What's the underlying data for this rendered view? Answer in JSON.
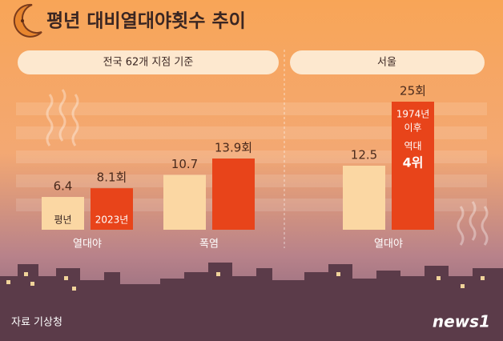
{
  "title": "평년 대비열대야횟수 추이",
  "source": "자료 기상청",
  "logo": "news1",
  "chart_data": [
    {
      "type": "bar",
      "subtitle": "전국 62개 지점 기준",
      "categories": [
        "열대야",
        "폭염"
      ],
      "series": [
        {
          "name": "평년",
          "color": "#fbd7a3",
          "values": [
            6.4,
            10.7
          ]
        },
        {
          "name": "2023년",
          "color": "#e8441a",
          "values": [
            8.1,
            13.9
          ],
          "value_labels": [
            "8.1회",
            "13.9회"
          ]
        }
      ]
    },
    {
      "type": "bar",
      "subtitle": "서울",
      "categories": [
        "열대야"
      ],
      "series": [
        {
          "color": "#fbd7a3",
          "values": [
            12.5
          ]
        },
        {
          "color": "#e8441a",
          "values": [
            25
          ],
          "value_labels": [
            "25회"
          ]
        }
      ],
      "annotation": [
        "1974년",
        "이후",
        "역대",
        "4위"
      ]
    }
  ]
}
